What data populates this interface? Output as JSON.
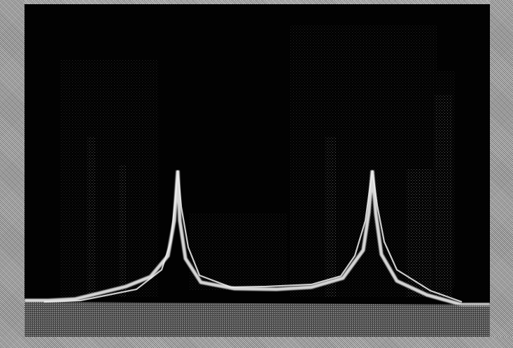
{
  "image": {
    "description_tag": "",
    "colors": {
      "screen": "#020202",
      "frame": "#a8a8a8",
      "trace": "#d8d8d8",
      "noise": "#777777"
    }
  }
}
